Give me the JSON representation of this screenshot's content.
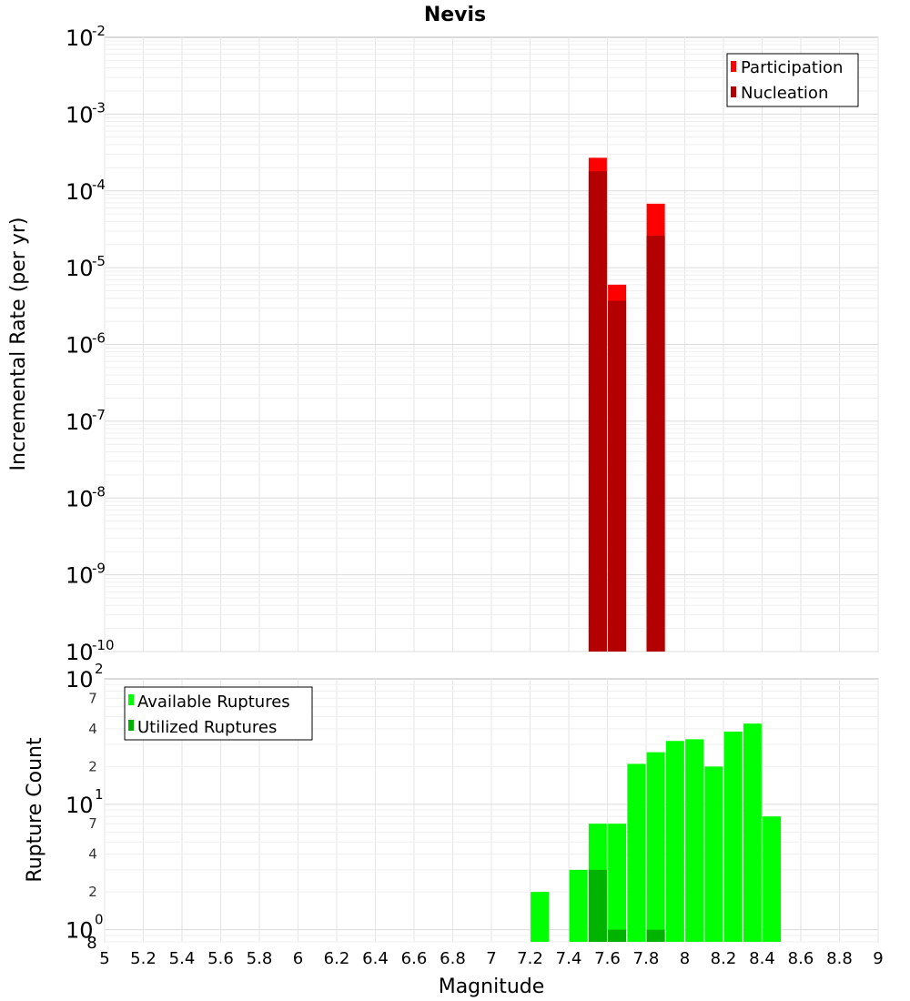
{
  "chart_data": [
    {
      "type": "bar",
      "title": "Nevis",
      "xlabel": "Magnitude",
      "ylabel": "Incremental Rate (per yr)",
      "xlim": [
        5,
        9
      ],
      "x_ticks": [
        "5",
        "5.2",
        "5.4",
        "5.6",
        "5.8",
        "6",
        "6.2",
        "6.4",
        "6.6",
        "6.8",
        "7",
        "7.2",
        "7.4",
        "7.6",
        "7.8",
        "8",
        "8.2",
        "8.4",
        "8.6",
        "8.8",
        "9"
      ],
      "yscale": "log",
      "ylim": [
        1e-10,
        0.01
      ],
      "y_tick_exponents": [
        "-10",
        "-9",
        "-8",
        "-7",
        "-6",
        "-5",
        "-4",
        "-3",
        "-2"
      ],
      "y_tick_base": "10",
      "grid": true,
      "legend_position": "top-right",
      "series": [
        {
          "name": "Participation",
          "color": "#ff0000",
          "x": [
            7.55,
            7.65,
            7.85
          ],
          "values": [
            0.00027,
            6e-06,
            6.8e-05
          ]
        },
        {
          "name": "Nucleation",
          "color": "#b30000",
          "x": [
            7.55,
            7.65,
            7.85
          ],
          "values": [
            0.00018,
            3.7e-06,
            2.6e-05
          ]
        }
      ]
    },
    {
      "type": "bar",
      "xlabel": "Magnitude",
      "ylabel": "Rupture Count",
      "xlim": [
        5,
        9
      ],
      "yscale": "log",
      "ylim": [
        0.8,
        100
      ],
      "y_tick_base": "10",
      "y_tick_exponents": [
        "0",
        "1",
        "2"
      ],
      "y_minor_ticks": [
        "2",
        "4",
        "7",
        "2",
        "4",
        "7"
      ],
      "y_bottom_label": "8",
      "grid": true,
      "legend_position": "top-left",
      "series": [
        {
          "name": "Available Ruptures",
          "color": "#00ff00",
          "x": [
            7.25,
            7.45,
            7.55,
            7.65,
            7.75,
            7.85,
            7.95,
            8.05,
            8.15,
            8.25,
            8.35,
            8.45
          ],
          "values": [
            2,
            3,
            7,
            7,
            21,
            26,
            32,
            33,
            20,
            38,
            44,
            8
          ]
        },
        {
          "name": "Utilized Ruptures",
          "color": "#00b300",
          "x": [
            7.55,
            7.65,
            7.85
          ],
          "values": [
            3,
            1,
            1
          ]
        }
      ]
    }
  ]
}
